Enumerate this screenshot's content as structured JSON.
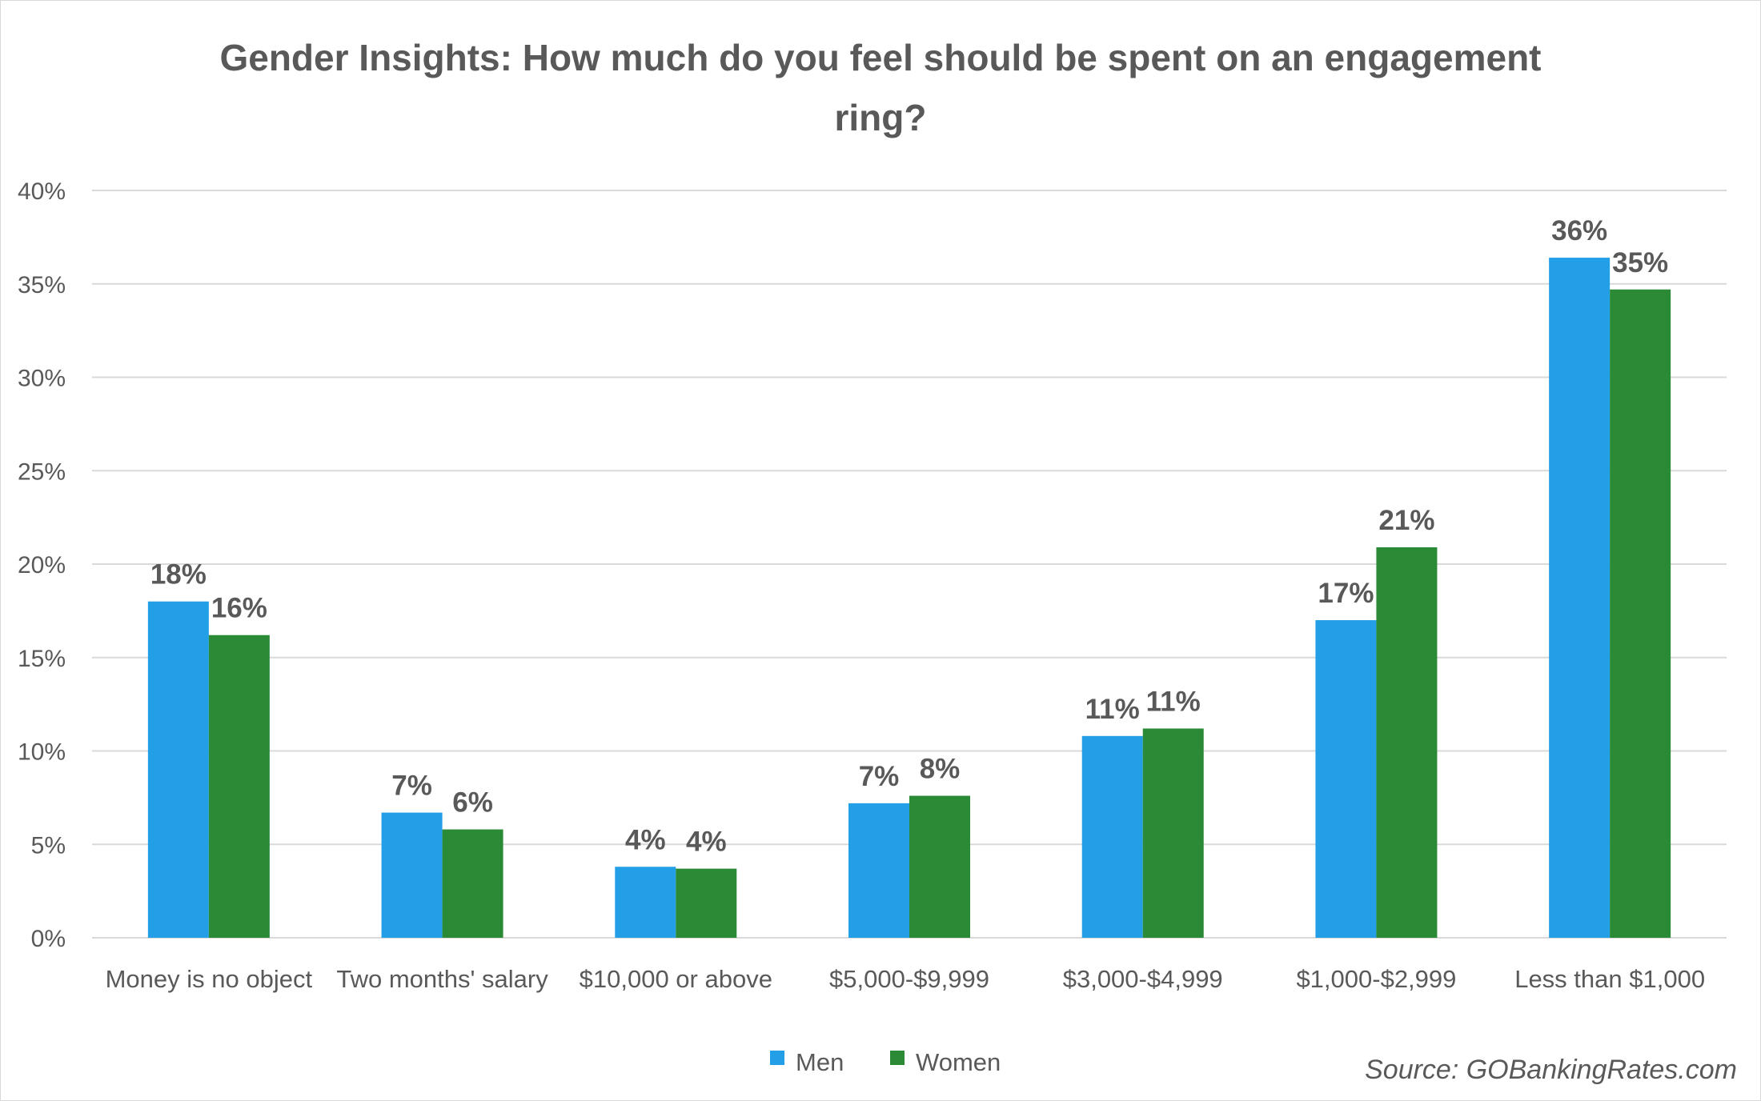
{
  "chart_data": {
    "type": "bar",
    "title_lines": [
      "Gender Insights: How much do you feel should be spent on an engagement",
      "ring?"
    ],
    "categories": [
      "Money is no object",
      "Two months' salary",
      "$10,000 or above",
      "$5,000-$9,999",
      "$3,000-$4,999",
      "$1,000-$2,999",
      "Less than $1,000"
    ],
    "series": [
      {
        "name": "Men",
        "color": "#229fe6",
        "values": [
          18.0,
          6.7,
          3.8,
          7.2,
          10.8,
          17.0,
          36.4
        ],
        "labels": [
          "18%",
          "7%",
          "4%",
          "7%",
          "11%",
          "17%",
          "36%"
        ]
      },
      {
        "name": "Women",
        "color": "#2a8a35",
        "values": [
          16.2,
          5.8,
          3.7,
          7.6,
          11.2,
          20.9,
          34.7
        ],
        "labels": [
          "16%",
          "6%",
          "4%",
          "8%",
          "11%",
          "21%",
          "35%"
        ]
      }
    ],
    "yticks": [
      0,
      5,
      10,
      15,
      20,
      25,
      30,
      35,
      40
    ],
    "ytick_labels": [
      "0%",
      "5%",
      "10%",
      "15%",
      "20%",
      "25%",
      "30%",
      "35%",
      "40%"
    ],
    "ylim": [
      0,
      40
    ],
    "xlabel": "",
    "ylabel": "",
    "grid": true,
    "legend_position": "bottom"
  },
  "source": "Source: GOBankingRates.com"
}
